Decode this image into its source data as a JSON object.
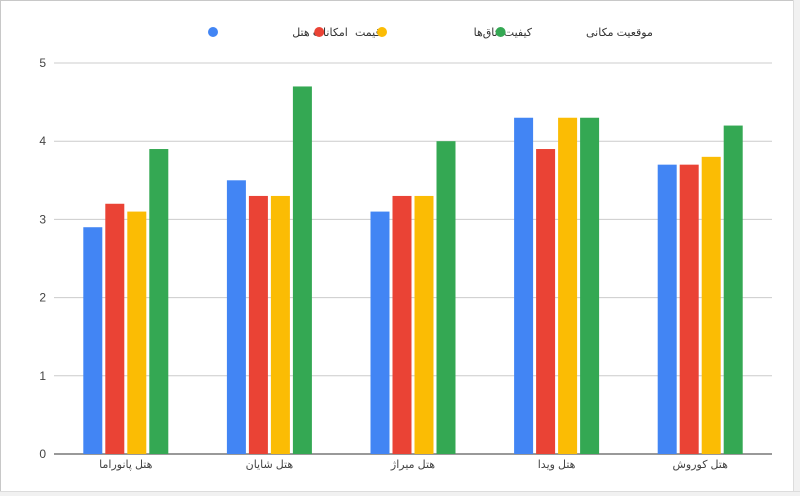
{
  "chart_data": {
    "type": "bar",
    "title": "",
    "xlabel": "",
    "ylabel": "",
    "categories": [
      "هتل پانوراما",
      "هتل شایان",
      "هتل میراژ",
      "هتل ویدا",
      "هتل کوروش"
    ],
    "series": [
      {
        "name": "امکانات هتل",
        "color": "#4285F4",
        "values": [
          2.9,
          3.5,
          3.1,
          4.3,
          3.7
        ]
      },
      {
        "name": "قیمت",
        "color": "#EA4335",
        "values": [
          3.2,
          3.3,
          3.3,
          3.9,
          3.7
        ]
      },
      {
        "name": "کیفیت اتاق‌ها",
        "color": "#FBBC04",
        "values": [
          3.1,
          3.3,
          3.3,
          4.3,
          3.8
        ]
      },
      {
        "name": "موقعیت مکانی",
        "color": "#34A853",
        "values": [
          3.9,
          4.7,
          4.0,
          4.3,
          4.2
        ]
      }
    ],
    "ylim": [
      0,
      5
    ],
    "yticks": [
      0,
      1,
      2,
      3,
      4,
      5
    ],
    "grid": true,
    "legend": "top-center"
  }
}
